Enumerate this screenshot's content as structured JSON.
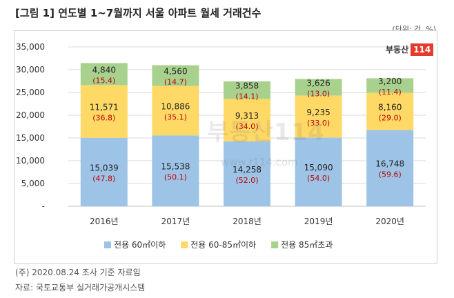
{
  "header": {
    "title": "[그림 1] 연도별 1~7월까지 서울 아파트 월세 거래건수",
    "unit": "(단위: 건, %)"
  },
  "logo": {
    "name": "부동산",
    "number": "114"
  },
  "watermark": {
    "text": "부동산114",
    "url": "www.r114.com"
  },
  "footer": {
    "note": "(주) 2020.08.24 조사 기준 자료임",
    "source": "자료: 국토교통부 실거래가공개시스템"
  },
  "colors": {
    "small": "#9dc3e6",
    "mid": "#ffd966",
    "large": "#a9d18e",
    "pct": "#c00000",
    "grid": "#d9d9d9"
  },
  "chart_data": {
    "type": "bar",
    "stacked": true,
    "categories": [
      "2016년",
      "2017년",
      "2018년",
      "2019년",
      "2020년"
    ],
    "ylim": [
      0,
      35000
    ],
    "yticks": [
      "-",
      "5,000",
      "10,000",
      "15,000",
      "20,000",
      "25,000",
      "30,000",
      "35,000"
    ],
    "legend_position": "bottom",
    "grid": true,
    "series": [
      {
        "name": "전용 60㎡이하",
        "values": [
          15039,
          15538,
          14258,
          15090,
          16748
        ],
        "labels": [
          "15,039",
          "15,538",
          "14,258",
          "15,090",
          "16,748"
        ],
        "pct": [
          "(47.8)",
          "(50.1)",
          "(52.0)",
          "(54.0)",
          "(59.6)"
        ]
      },
      {
        "name": "전용 60-85㎡이하",
        "values": [
          11571,
          10886,
          9313,
          9235,
          8160
        ],
        "labels": [
          "11,571",
          "10,886",
          "9,313",
          "9,235",
          "8,160"
        ],
        "pct": [
          "(36.8)",
          "(35.1)",
          "(34.0)",
          "(33.0)",
          "(29.0)"
        ]
      },
      {
        "name": "전용 85㎡초과",
        "values": [
          4840,
          4560,
          3858,
          3626,
          3200
        ],
        "labels": [
          "4,840",
          "4,560",
          "3,858",
          "3,626",
          "3,200"
        ],
        "pct": [
          "(15.4)",
          "(14.7)",
          "(14.1)",
          "(13.0)",
          "(11.4)"
        ]
      }
    ]
  }
}
